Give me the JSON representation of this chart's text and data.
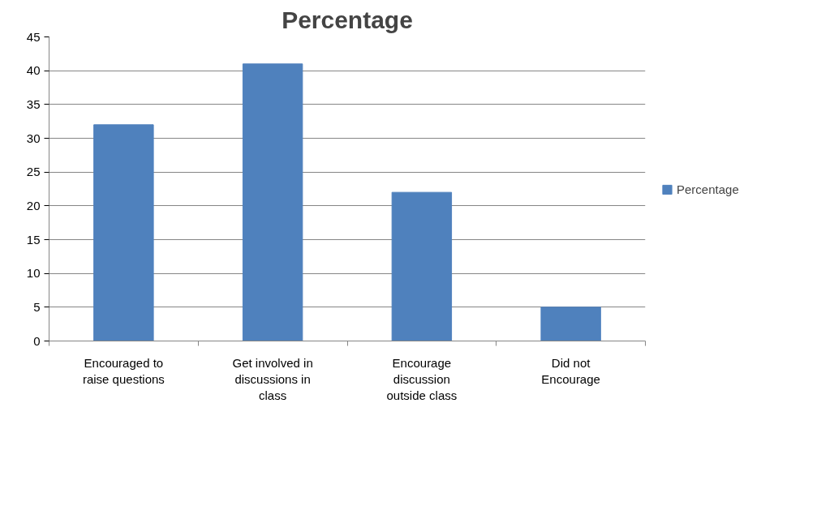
{
  "chart_data": {
    "type": "bar",
    "title": "Percentage",
    "categories": [
      "Encouraged to raise questions",
      "Get involved in discussions in class",
      "Encourage discussion outside class",
      "Did not Encourage"
    ],
    "series": [
      {
        "name": "Percentage",
        "color": "#4f81bd",
        "values": [
          32,
          41,
          22,
          5
        ]
      }
    ],
    "ylim": [
      0,
      45
    ],
    "yticks": [
      0,
      5,
      10,
      15,
      20,
      25,
      30,
      35,
      40,
      45
    ],
    "grid": "y",
    "legend": "right"
  }
}
